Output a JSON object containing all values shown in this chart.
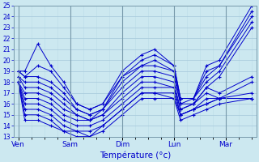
{
  "xlabel": "Température (°c)",
  "background_color": "#cce8f0",
  "line_color": "#0000cc",
  "grid_major_color": "#aaccdd",
  "grid_minor_color": "#bbdde8",
  "ylim": [
    13,
    25
  ],
  "yticks": [
    13,
    14,
    15,
    16,
    17,
    18,
    19,
    20,
    21,
    22,
    23,
    24,
    25
  ],
  "xtick_labels": [
    "Ven",
    "Sam",
    "Dim",
    "Lun",
    "Mar"
  ],
  "day_x": [
    0,
    24,
    48,
    72,
    96
  ],
  "xlim": [
    -2,
    110
  ],
  "series": [
    [
      19.0,
      19.0,
      21.5,
      19.5,
      18.0,
      16.0,
      15.5,
      16.0,
      19.0,
      20.5,
      21.0,
      19.5,
      16.5,
      16.5,
      19.5,
      20.0,
      25.0
    ],
    [
      19.0,
      18.5,
      19.5,
      19.0,
      17.5,
      16.0,
      15.5,
      16.0,
      18.5,
      20.0,
      20.5,
      19.5,
      16.5,
      16.5,
      19.0,
      19.5,
      24.5
    ],
    [
      19.0,
      18.5,
      18.5,
      18.0,
      17.0,
      15.5,
      15.0,
      15.5,
      18.5,
      19.5,
      20.0,
      19.0,
      16.5,
      16.5,
      18.5,
      19.5,
      24.0
    ],
    [
      18.5,
      18.0,
      18.0,
      17.5,
      16.5,
      15.5,
      15.0,
      15.5,
      18.0,
      19.5,
      19.5,
      19.0,
      16.0,
      16.5,
      18.0,
      19.0,
      23.5
    ],
    [
      18.5,
      17.5,
      17.5,
      17.0,
      16.0,
      15.0,
      14.5,
      15.5,
      17.5,
      19.0,
      19.0,
      18.5,
      16.0,
      16.0,
      17.5,
      18.5,
      23.0
    ],
    [
      18.0,
      17.0,
      17.0,
      16.5,
      15.5,
      15.0,
      14.5,
      15.0,
      17.0,
      18.5,
      18.5,
      18.0,
      15.5,
      16.0,
      17.5,
      17.0,
      18.5
    ],
    [
      18.0,
      16.5,
      16.5,
      16.0,
      15.0,
      14.5,
      14.5,
      15.0,
      16.5,
      18.0,
      18.0,
      17.5,
      15.5,
      16.0,
      17.0,
      16.5,
      18.0
    ],
    [
      18.0,
      16.0,
      16.0,
      15.5,
      14.5,
      14.0,
      14.0,
      14.5,
      16.0,
      17.5,
      17.5,
      17.5,
      15.0,
      15.5,
      16.5,
      16.5,
      17.0
    ],
    [
      18.0,
      15.5,
      15.5,
      15.0,
      14.0,
      13.5,
      13.5,
      14.0,
      15.5,
      17.0,
      17.0,
      17.0,
      15.0,
      15.5,
      16.0,
      16.5,
      16.5
    ],
    [
      18.0,
      15.0,
      15.0,
      14.5,
      13.5,
      13.5,
      13.0,
      14.0,
      15.5,
      17.0,
      17.0,
      16.5,
      15.0,
      15.5,
      16.0,
      16.5,
      16.5
    ],
    [
      18.0,
      14.5,
      14.5,
      14.0,
      13.5,
      13.0,
      13.0,
      13.5,
      15.0,
      16.5,
      16.5,
      16.5,
      14.5,
      15.0,
      15.5,
      16.0,
      16.5
    ]
  ],
  "x_hours": [
    0,
    3,
    9,
    15,
    21,
    27,
    33,
    39,
    48,
    57,
    63,
    72,
    75,
    81,
    87,
    93,
    108
  ]
}
